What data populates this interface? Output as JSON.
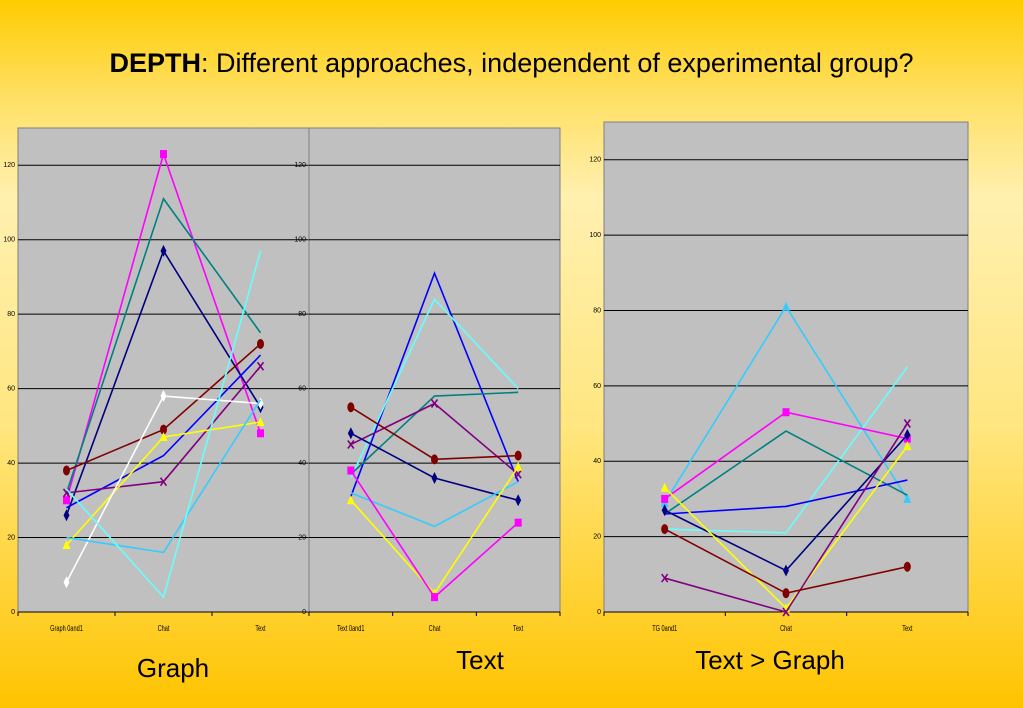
{
  "title": {
    "bold": "DEPTH",
    "rest": ": Different approaches, independent of experimental group?"
  },
  "colors": {
    "plot_bg": "#c0c0c0",
    "grid": "#000000",
    "pink": "#ff00ff",
    "teal": "#008080",
    "navy": "#000080",
    "maroon": "#800000",
    "yellow": "#ffff00",
    "white": "#ffffff",
    "lightblue": "#33ccff",
    "purple": "#800080",
    "blue": "#0000ff",
    "aqua": "#66ffff"
  },
  "chart_data": [
    {
      "type": "line",
      "caption": "Graph",
      "categories": [
        "Graph 0and1",
        "Chat",
        "Text"
      ],
      "ylim": [
        0,
        130
      ],
      "yticks": [
        "0",
        "20",
        "40",
        "60",
        "80",
        "100",
        "120"
      ],
      "grid": true,
      "series": [
        {
          "color": "#ff00ff",
          "marker": "square",
          "values": [
            30,
            123,
            48
          ]
        },
        {
          "color": "#008080",
          "marker": "none",
          "values": [
            32,
            111,
            75
          ]
        },
        {
          "color": "#000080",
          "marker": "diamond",
          "values": [
            26,
            97,
            55
          ]
        },
        {
          "color": "#800000",
          "marker": "circle",
          "values": [
            38,
            49,
            72
          ]
        },
        {
          "color": "#0000ff",
          "marker": "none",
          "values": [
            28,
            42,
            69
          ]
        },
        {
          "color": "#800080",
          "marker": "x",
          "values": [
            32,
            35,
            66
          ]
        },
        {
          "color": "#ffff00",
          "marker": "triangle",
          "values": [
            18,
            47,
            51
          ]
        },
        {
          "color": "#ffffff",
          "marker": "diamond",
          "values": [
            8,
            58,
            56
          ]
        },
        {
          "color": "#33ccff",
          "marker": "none",
          "values": [
            20,
            16,
            57
          ]
        },
        {
          "color": "#66ffff",
          "marker": "none",
          "values": [
            33,
            4,
            97
          ]
        }
      ]
    },
    {
      "type": "line",
      "caption": "Text",
      "categories": [
        "Text 0and1",
        "Chat",
        "Text"
      ],
      "ylim": [
        0,
        130
      ],
      "yticks": [
        "0",
        "20",
        "40",
        "60",
        "80",
        "100",
        "120"
      ],
      "grid": true,
      "series": [
        {
          "color": "#0000ff",
          "marker": "none",
          "values": [
            31,
            91,
            35
          ]
        },
        {
          "color": "#66ffff",
          "marker": "none",
          "values": [
            36,
            84,
            60
          ]
        },
        {
          "color": "#008080",
          "marker": "none",
          "values": [
            37,
            58,
            59
          ]
        },
        {
          "color": "#800080",
          "marker": "x",
          "values": [
            45,
            56,
            37
          ]
        },
        {
          "color": "#800000",
          "marker": "circle",
          "values": [
            55,
            41,
            42
          ]
        },
        {
          "color": "#000080",
          "marker": "diamond",
          "values": [
            48,
            36,
            30
          ]
        },
        {
          "color": "#33ccff",
          "marker": "none",
          "values": [
            32,
            23,
            35
          ]
        },
        {
          "color": "#ffff00",
          "marker": "triangle",
          "values": [
            30,
            5,
            39
          ]
        },
        {
          "color": "#ff00ff",
          "marker": "square",
          "values": [
            38,
            4,
            24
          ]
        }
      ]
    },
    {
      "type": "line",
      "caption": "Text > Graph",
      "categories": [
        "TG 0and1",
        "Chat",
        "Text"
      ],
      "ylim": [
        0,
        130
      ],
      "yticks": [
        "0",
        "20",
        "40",
        "60",
        "80",
        "100",
        "120"
      ],
      "grid": true,
      "series": [
        {
          "color": "#33ccff",
          "marker": "triangle",
          "values": [
            29,
            81,
            30
          ]
        },
        {
          "color": "#66ffff",
          "marker": "none",
          "values": [
            22,
            21,
            65
          ]
        },
        {
          "color": "#ff00ff",
          "marker": "square",
          "values": [
            30,
            53,
            46
          ]
        },
        {
          "color": "#008080",
          "marker": "none",
          "values": [
            26,
            48,
            31
          ]
        },
        {
          "color": "#0000ff",
          "marker": "none",
          "values": [
            26,
            28,
            35
          ]
        },
        {
          "color": "#000080",
          "marker": "diamond",
          "values": [
            27,
            11,
            47
          ]
        },
        {
          "color": "#ffff00",
          "marker": "triangle",
          "values": [
            33,
            1,
            44
          ]
        },
        {
          "color": "#800080",
          "marker": "x",
          "values": [
            9,
            0,
            50
          ]
        },
        {
          "color": "#800000",
          "marker": "circle",
          "values": [
            22,
            5,
            12
          ]
        }
      ]
    }
  ]
}
